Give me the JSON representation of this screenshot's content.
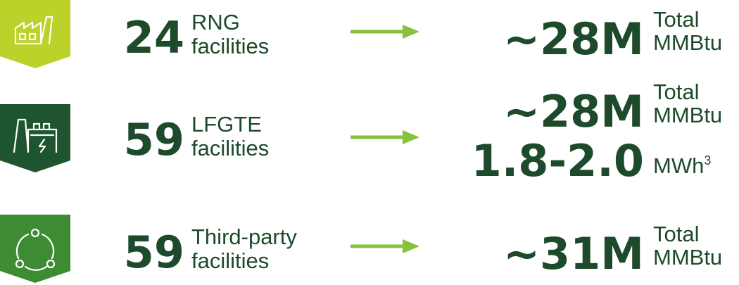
{
  "rows": [
    {
      "icon": "factory",
      "color": "#bdd12b",
      "count": "24",
      "label": [
        "RNG",
        "facilities"
      ],
      "outputs": [
        {
          "value": "~28M",
          "unit": [
            "Total",
            "MMBtu"
          ]
        }
      ]
    },
    {
      "icon": "power-plant",
      "color": "#1f5430",
      "count": "59",
      "label": [
        "LFGTE",
        "facilities"
      ],
      "outputs": [
        {
          "value": "~28M",
          "unit": [
            "Total",
            "MMBtu"
          ]
        },
        {
          "value": "1.8-2.0",
          "unit": [
            "MWh"
          ],
          "sup": "3"
        }
      ]
    },
    {
      "icon": "cycle",
      "color": "#3d8c34",
      "count": "59",
      "label": [
        "Third-party",
        "facilities"
      ],
      "outputs": [
        {
          "value": "~31M",
          "unit": [
            "Total",
            "MMBtu"
          ]
        }
      ]
    }
  ]
}
